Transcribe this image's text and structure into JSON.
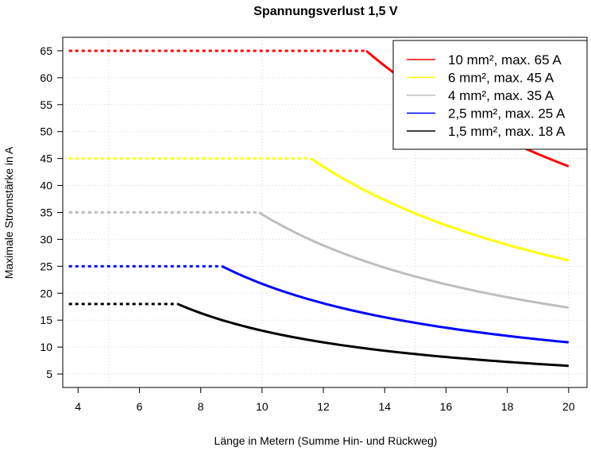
{
  "chart_data": {
    "type": "line",
    "title": "Spannungsverlust 1,5 V",
    "xlabel": "Länge in Metern (Summe Hin- und Rückweg)",
    "ylabel": "Maximale Stromstärke in A",
    "xlim": [
      3.5,
      20.6
    ],
    "ylim": [
      2.5,
      67.5
    ],
    "xticks": [
      4,
      6,
      8,
      10,
      12,
      14,
      16,
      18,
      20
    ],
    "yticks": [
      5,
      10,
      15,
      20,
      25,
      30,
      35,
      40,
      45,
      50,
      55,
      60,
      65
    ],
    "x_gridlines": [
      5,
      10,
      15,
      20
    ],
    "y_gridlines": [
      5,
      10,
      15,
      20,
      25,
      30,
      35,
      40,
      45,
      50,
      55,
      60,
      65
    ],
    "grid": true,
    "legend_position": "top-right",
    "x_range_of_curves": [
      3.7,
      20
    ],
    "series": [
      {
        "name": "10 mm², max. 65 A",
        "color": "#ff0000",
        "max_current": 65,
        "breakpoint_length": 13.4
      },
      {
        "name": "6 mm², max. 45 A",
        "color": "#ffff00",
        "max_current": 45,
        "breakpoint_length": 11.6
      },
      {
        "name": "4 mm², max. 35 A",
        "color": "#bebebe",
        "max_current": 35,
        "breakpoint_length": 9.9
      },
      {
        "name": "2,5 mm², max. 25 A",
        "color": "#0000ff",
        "max_current": 25,
        "breakpoint_length": 8.7
      },
      {
        "name": "1,5 mm², max. 18 A",
        "color": "#000000",
        "max_current": 18,
        "breakpoint_length": 7.25
      }
    ]
  }
}
